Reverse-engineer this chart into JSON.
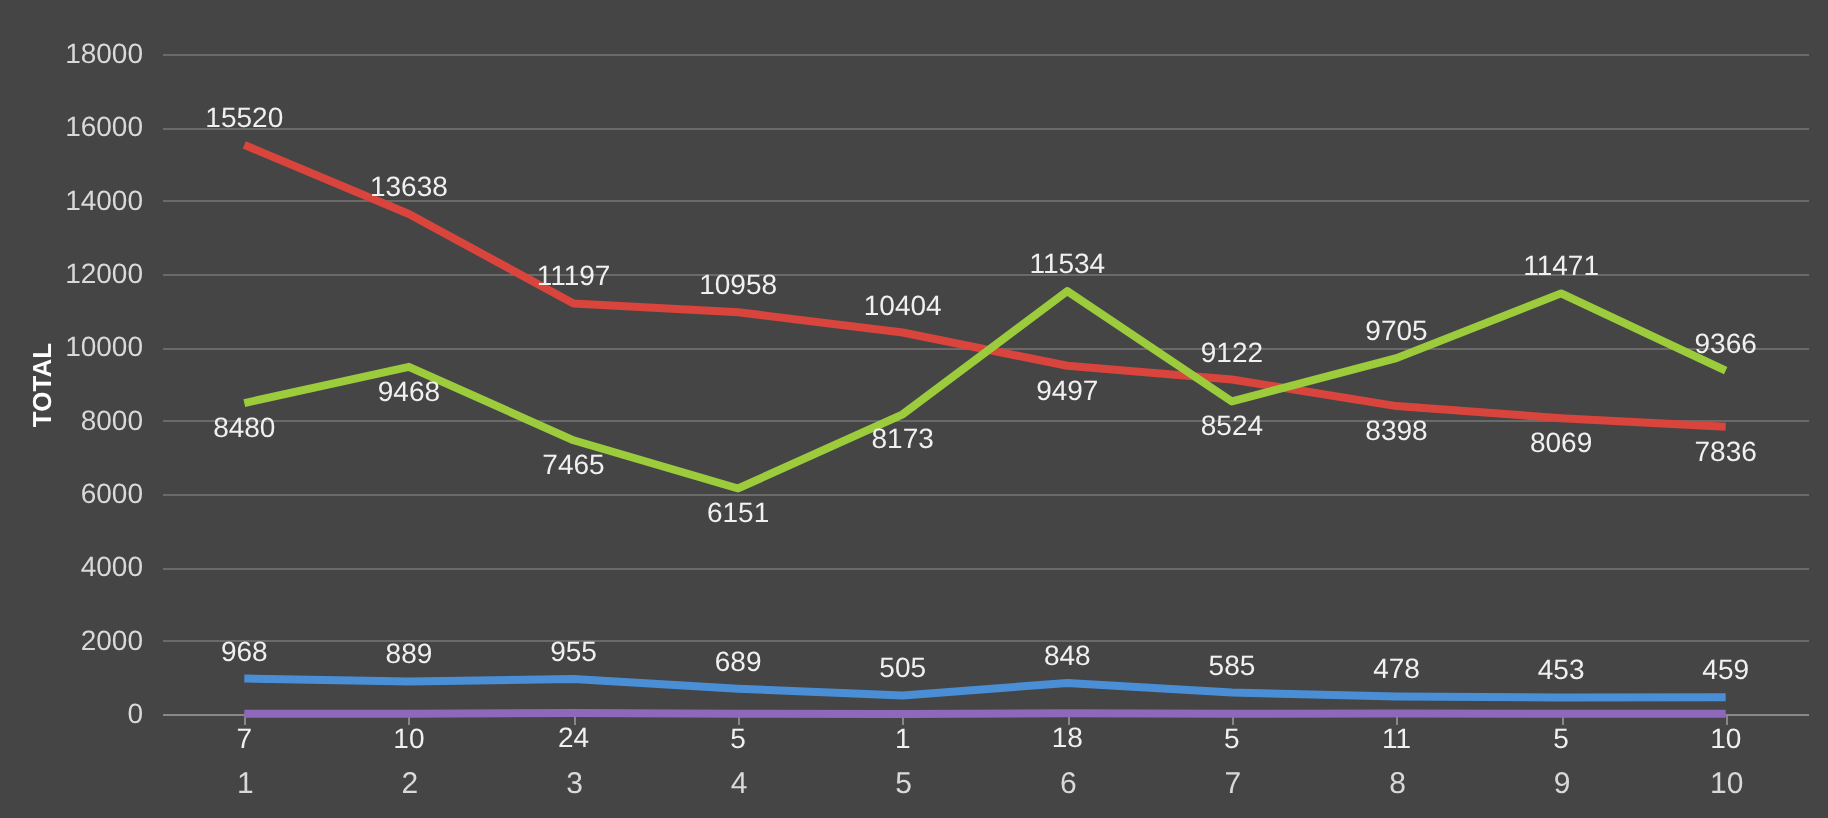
{
  "chart_data": {
    "type": "line",
    "ylabel": "TOTAL",
    "categories": [
      "1",
      "2",
      "3",
      "4",
      "5",
      "6",
      "7",
      "8",
      "9",
      "10"
    ],
    "series": [
      {
        "color": "#d9453c",
        "values": [
          15520,
          13638,
          11197,
          10958,
          10404,
          9497,
          9122,
          8398,
          8069,
          7836
        ]
      },
      {
        "color": "#9ccc3c",
        "values": [
          8480,
          9468,
          7465,
          6151,
          8173,
          11534,
          8524,
          9705,
          11471,
          9366
        ]
      },
      {
        "color": "#4a8fd6",
        "values": [
          968,
          889,
          955,
          689,
          505,
          848,
          585,
          478,
          453,
          459
        ]
      },
      {
        "color": "#8e68bb",
        "values": [
          7,
          10,
          24,
          5,
          1,
          18,
          5,
          11,
          5,
          10
        ]
      }
    ],
    "ylim": [
      0,
      18000
    ],
    "yticks": [
      0,
      2000,
      4000,
      6000,
      8000,
      10000,
      12000,
      14000,
      16000,
      18000
    ],
    "grid": "y",
    "legend": false,
    "marker": "none",
    "line_style": "solid",
    "data_labels": true
  }
}
